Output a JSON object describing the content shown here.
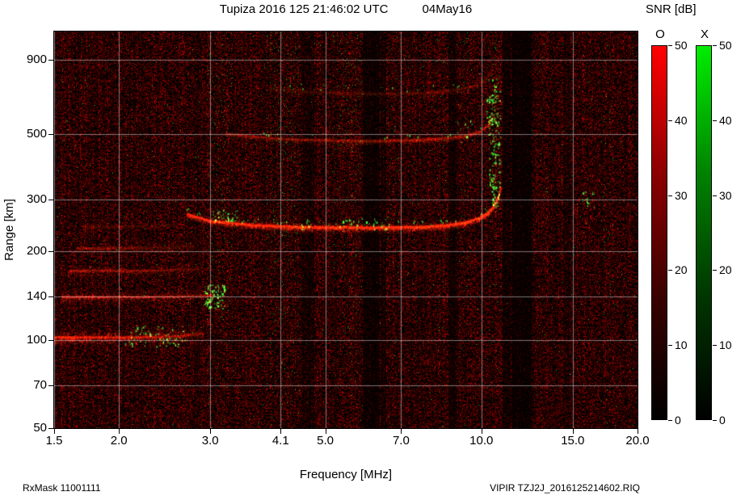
{
  "header": {
    "title": "Tupiza 2016 125 21:46:02 UTC",
    "date": "04May16",
    "colorbar_title": "SNR [dB]"
  },
  "footer": {
    "left": "RxMask 11001111",
    "right": "VIPIR  TZJ2J_2016125214602.RIQ"
  },
  "chart_data": {
    "type": "heatmap",
    "title": "Tupiza 2016 125 21:46:02 UTC",
    "date_label": "04May16",
    "xlabel": "Frequency [MHz]",
    "ylabel": "Range [km]",
    "legend_title": "SNR [dB]",
    "x_scale": "log",
    "y_scale": "log",
    "x_range": [
      1.5,
      20.0
    ],
    "y_range": [
      50,
      1120
    ],
    "x_ticks": [
      1.5,
      2.0,
      3.0,
      4.1,
      5.0,
      7.0,
      10.0,
      15.0,
      20.0
    ],
    "x_tick_labels": [
      "1.5",
      "2.0",
      "3.0",
      "4.1",
      "5.0",
      "7.0",
      "10.0",
      "15.0",
      "20.0"
    ],
    "y_ticks": [
      50,
      70,
      100,
      140,
      200,
      300,
      500,
      900
    ],
    "y_tick_labels": [
      "50",
      "70",
      "100",
      "140",
      "200",
      "300",
      "500",
      "900"
    ],
    "grid": true,
    "background": "#000000",
    "colorbars": [
      {
        "label": "O",
        "color": "#ff0000",
        "min": 0,
        "max": 50,
        "ticks": [
          0,
          10,
          20,
          30,
          40,
          50
        ]
      },
      {
        "label": "X",
        "color": "#00ee00",
        "min": 0,
        "max": 50,
        "ticks": [
          0,
          10,
          20,
          30,
          40,
          50
        ]
      }
    ],
    "traces": [
      {
        "name": "E-stratum-100km",
        "points": [
          [
            1.5,
            102
          ],
          [
            2.2,
            102
          ],
          [
            2.6,
            103
          ],
          [
            2.9,
            105
          ]
        ],
        "spread_km": 7,
        "alpha": 0.5,
        "density": 6,
        "fade": [
          1.0,
          0.35
        ],
        "green_edge": 0
      },
      {
        "name": "E-stratum-140km",
        "points": [
          [
            1.55,
            140
          ],
          [
            2.4,
            140
          ],
          [
            3.05,
            142
          ]
        ],
        "spread_km": 8,
        "alpha": 0.35,
        "density": 5,
        "fade": [
          0.9,
          0.45
        ],
        "green_edge": 0
      },
      {
        "name": "E-stratum-172km",
        "points": [
          [
            1.6,
            172
          ],
          [
            2.3,
            172
          ],
          [
            2.85,
            174
          ]
        ],
        "spread_km": 9,
        "alpha": 0.28,
        "density": 4,
        "fade": [
          0.9,
          0.3
        ],
        "green_edge": 0
      },
      {
        "name": "E-stratum-205km",
        "points": [
          [
            1.65,
            205
          ],
          [
            2.3,
            206
          ],
          [
            2.8,
            208
          ]
        ],
        "spread_km": 10,
        "alpha": 0.2,
        "density": 4,
        "fade": [
          0.85,
          0.3
        ],
        "green_edge": 0
      },
      {
        "name": "E-stratum-243km",
        "points": [
          [
            1.7,
            243
          ],
          [
            2.2,
            244
          ],
          [
            2.6,
            246
          ]
        ],
        "spread_km": 10,
        "alpha": 0.12,
        "density": 3,
        "fade": [
          0.8,
          0.3
        ],
        "green_edge": 0
      },
      {
        "name": "F-trace-hop1",
        "points": [
          [
            2.7,
            268
          ],
          [
            3.0,
            254
          ],
          [
            3.6,
            246
          ],
          [
            4.5,
            242
          ],
          [
            6.0,
            241
          ],
          [
            7.5,
            242
          ],
          [
            8.5,
            245
          ],
          [
            9.3,
            251
          ],
          [
            9.9,
            260
          ],
          [
            10.3,
            272
          ],
          [
            10.55,
            286
          ],
          [
            10.75,
            306
          ],
          [
            10.88,
            332
          ]
        ],
        "spread_km": 9,
        "alpha": 0.5,
        "density": 7,
        "fade": [
          0.75,
          1.0
        ],
        "green_edge": 0.12
      },
      {
        "name": "F-trace-hop2",
        "points": [
          [
            3.2,
            505
          ],
          [
            3.6,
            492
          ],
          [
            4.2,
            483
          ],
          [
            5.0,
            478
          ],
          [
            6.2,
            476
          ],
          [
            7.5,
            479
          ],
          [
            8.6,
            486
          ],
          [
            9.4,
            497
          ],
          [
            9.9,
            512
          ],
          [
            10.3,
            540
          ],
          [
            10.55,
            585
          ]
        ],
        "spread_km": 14,
        "alpha": 0.22,
        "density": 5,
        "fade": [
          0.5,
          0.9
        ],
        "green_edge": 0.05
      },
      {
        "name": "F-trace-hop3",
        "points": [
          [
            3.9,
            720
          ],
          [
            4.6,
            700
          ],
          [
            5.5,
            690
          ],
          [
            6.8,
            688
          ],
          [
            8.0,
            696
          ],
          [
            9.0,
            712
          ],
          [
            9.7,
            735
          ],
          [
            10.2,
            775
          ],
          [
            10.5,
            840
          ]
        ],
        "spread_km": 28,
        "alpha": 0.12,
        "density": 4,
        "fade": [
          0.4,
          0.8
        ],
        "green_edge": 0.03
      }
    ],
    "green_patches": [
      {
        "f": [
          2.9,
          3.2
        ],
        "r": [
          128,
          155
        ],
        "density": 2.5
      },
      {
        "f": [
          2.05,
          2.7
        ],
        "r": [
          95,
          112
        ],
        "density": 0.8
      },
      {
        "f": [
          10.3,
          10.85
        ],
        "r": [
          330,
          780
        ],
        "density": 1.5
      },
      {
        "f": [
          10.45,
          10.8
        ],
        "r": [
          285,
          335
        ],
        "density": 3.0
      },
      {
        "f": [
          3.0,
          3.4
        ],
        "r": [
          252,
          278
        ],
        "density": 1.5
      },
      {
        "f": [
          5.3,
          6.7
        ],
        "r": [
          238,
          260
        ],
        "density": 0.7
      },
      {
        "f": [
          4.4,
          4.7
        ],
        "r": [
          235,
          265
        ],
        "density": 0.5
      },
      {
        "f": [
          8.9,
          9.6
        ],
        "r": [
          470,
          560
        ],
        "density": 0.5
      },
      {
        "f": [
          10.2,
          10.6
        ],
        "r": [
          540,
          680
        ],
        "density": 0.9
      },
      {
        "f": [
          15.6,
          16.6
        ],
        "r": [
          270,
          340
        ],
        "density": 0.5
      }
    ],
    "noise": {
      "red_gamma": 3.2,
      "red_scale": 170,
      "green_prob": 0.004,
      "green_columns": [
        {
          "f": [
            2.95,
            3.3
          ],
          "boost": 6
        },
        {
          "f": [
            3.85,
            4.45
          ],
          "boost": 7
        },
        {
          "f": [
            5.15,
            5.9
          ],
          "boost": 6
        },
        {
          "f": [
            6.55,
            7.0
          ],
          "boost": 4
        },
        {
          "f": [
            8.15,
            8.6
          ],
          "boost": 4
        },
        {
          "f": [
            9.0,
            9.4
          ],
          "boost": 3.5
        },
        {
          "f": [
            10.2,
            10.9
          ],
          "boost": 3
        },
        {
          "f": [
            12.9,
            13.4
          ],
          "boost": 2.5
        },
        {
          "f": [
            17.0,
            18.0
          ],
          "boost": 4
        }
      ],
      "dark_columns": [
        {
          "f": [
            4.5,
            4.75
          ],
          "mult": 0.55
        },
        {
          "f": [
            5.9,
            6.35
          ],
          "mult": 0.35
        },
        {
          "f": [
            6.4,
            6.55
          ],
          "mult": 0.5
        },
        {
          "f": [
            8.62,
            8.95
          ],
          "mult": 0.45
        },
        {
          "f": [
            10.95,
            11.35
          ],
          "mult": 0.45
        },
        {
          "f": [
            11.4,
            12.5
          ],
          "mult": 0.3
        },
        {
          "f": [
            14.35,
            14.75
          ],
          "mult": 0.6
        }
      ]
    }
  }
}
